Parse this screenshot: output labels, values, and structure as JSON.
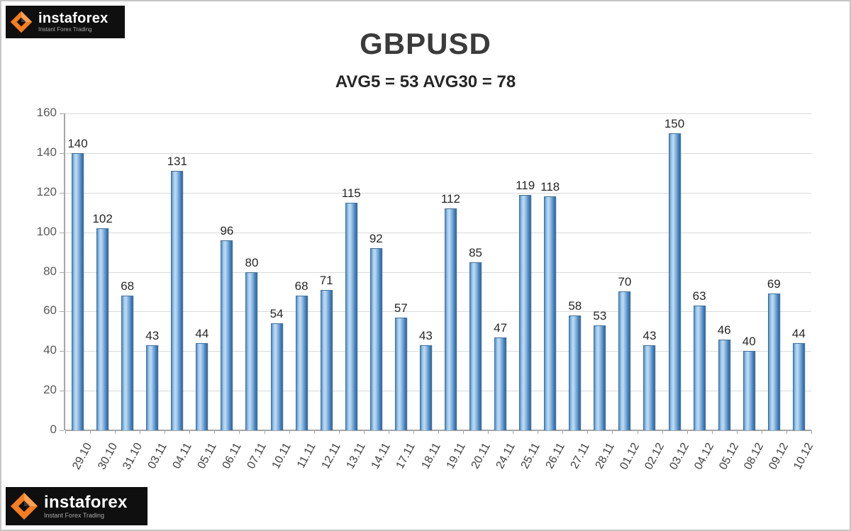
{
  "logo": {
    "brand": "instaforex",
    "tagline": "Instant Forex Trading"
  },
  "chart_data": {
    "type": "bar",
    "title": "GBPUSD",
    "subtitle": "AVG5 = 53 AVG30 = 78",
    "categories": [
      "29.10",
      "30.10",
      "31.10",
      "03.11",
      "04.11",
      "05.11",
      "06.11",
      "07.11",
      "10.11",
      "11.11",
      "12.11",
      "13.11",
      "14.11",
      "17.11",
      "18.11",
      "19.11",
      "20.11",
      "24.11",
      "25.11",
      "26.11",
      "27.11",
      "28.11",
      "01.12",
      "02.12",
      "03.12",
      "04.12",
      "05.12",
      "08.12",
      "09.12",
      "10.12"
    ],
    "values": [
      140,
      102,
      68,
      43,
      131,
      44,
      96,
      80,
      54,
      68,
      71,
      115,
      92,
      57,
      43,
      112,
      85,
      47,
      119,
      118,
      58,
      53,
      70,
      43,
      150,
      63,
      46,
      40,
      69,
      44
    ],
    "ylim": [
      0,
      160
    ],
    "yticks": [
      0,
      20,
      40,
      60,
      80,
      100,
      120,
      140,
      160
    ],
    "grid": true,
    "legend": "none",
    "bar_color": "#5b9bd5",
    "bar_border_color": "#41719c",
    "accent_orange": "#f57c20",
    "logo_background": "#0f0f0f"
  }
}
